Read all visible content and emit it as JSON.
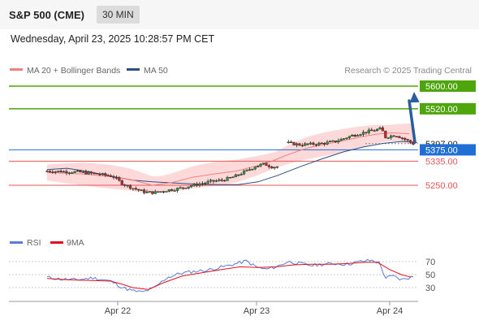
{
  "header": {
    "title": "S&P 500 (CME)",
    "timeframe": "30 MIN"
  },
  "datetime": "Wednesday, April 23, 2025 10:28:57 PM CET",
  "legend": {
    "ma20": "MA 20 + Bollinger Bands",
    "ma50": "MA 50",
    "rsi": "RSI",
    "ma9": "9MA"
  },
  "source": "Research © 2025 Trading Central",
  "colors": {
    "target": "#4ea50c",
    "support": "#e8555a",
    "current": "#1f6fd6",
    "ma50": "#2d4f86",
    "ma20": "#f08080",
    "band": "#fdd9d9",
    "rsi": "#5a7bd8",
    "ma9": "#e0141e",
    "arrow": "#2a5d9c"
  },
  "chart_data": {
    "type": "line",
    "instrument": "S&P 500 (CME)",
    "timeframe": "30 MIN",
    "x_ticks": [
      "Apr 22",
      "Apr 23",
      "Apr 24"
    ],
    "price_levels": [
      {
        "label": "5600.00",
        "value": 5600,
        "kind": "target"
      },
      {
        "label": "5520.00",
        "value": 5520,
        "kind": "target"
      },
      {
        "label": "5397.00",
        "value": 5397,
        "kind": "last"
      },
      {
        "label": "5375.00",
        "value": 5375,
        "kind": "pivot"
      },
      {
        "label": "5335.00",
        "value": 5335,
        "kind": "support"
      },
      {
        "label": "5250.00",
        "value": 5250,
        "kind": "support"
      }
    ],
    "price_path": [
      [
        0,
        5300
      ],
      [
        1.5,
        5297
      ],
      [
        2.5,
        5290
      ],
      [
        3.3,
        5282
      ],
      [
        3.8,
        5255
      ],
      [
        4.3,
        5240
      ],
      [
        4.9,
        5226
      ],
      [
        5.4,
        5224
      ],
      [
        6,
        5232
      ],
      [
        6.6,
        5238
      ],
      [
        7.2,
        5248
      ],
      [
        7.7,
        5255
      ],
      [
        8.2,
        5263
      ],
      [
        8.8,
        5268
      ],
      [
        9.4,
        5280
      ],
      [
        10,
        5300
      ],
      [
        10.5,
        5318
      ],
      [
        10.9,
        5325
      ],
      [
        11.3,
        5315
      ],
      [
        11.7,
        5316
      ],
      [
        12,
        5400
      ],
      [
        12.7,
        5393
      ],
      [
        13.3,
        5395
      ],
      [
        13.9,
        5398
      ],
      [
        14.5,
        5405
      ],
      [
        15.3,
        5425
      ],
      [
        16,
        5438
      ],
      [
        16.5,
        5445
      ],
      [
        16.8,
        5450
      ],
      [
        17,
        5420
      ],
      [
        17.5,
        5428
      ],
      [
        17.9,
        5415
      ],
      [
        18.4,
        5397
      ]
    ],
    "ma20_path": [
      [
        0,
        5295
      ],
      [
        1.8,
        5290
      ],
      [
        3.2,
        5280
      ],
      [
        4.2,
        5270
      ],
      [
        5.3,
        5250
      ],
      [
        6.3,
        5260
      ],
      [
        7.3,
        5278
      ],
      [
        8.4,
        5290
      ],
      [
        9.5,
        5300
      ],
      [
        10.5,
        5318
      ],
      [
        11.3,
        5335
      ],
      [
        12.1,
        5358
      ],
      [
        13,
        5380
      ],
      [
        13.8,
        5393
      ],
      [
        14.7,
        5405
      ],
      [
        15.6,
        5418
      ],
      [
        16.5,
        5430
      ],
      [
        17.3,
        5435
      ],
      [
        18.2,
        5432
      ]
    ],
    "ma50_path": [
      [
        0,
        5305
      ],
      [
        1,
        5310
      ],
      [
        2.1,
        5298
      ],
      [
        3.2,
        5282
      ],
      [
        4.3,
        5268
      ],
      [
        5.3,
        5262
      ],
      [
        6.4,
        5258
      ],
      [
        7.5,
        5254
      ],
      [
        8.6,
        5252
      ],
      [
        9.6,
        5252
      ],
      [
        10.6,
        5262
      ],
      [
        11.6,
        5285
      ],
      [
        12.7,
        5315
      ],
      [
        13.8,
        5343
      ],
      [
        14.9,
        5368
      ],
      [
        15.9,
        5385
      ],
      [
        16.9,
        5398
      ],
      [
        17.9,
        5405
      ],
      [
        18.6,
        5400
      ]
    ],
    "price_range": [
      5185,
      5620
    ],
    "rsi": {
      "levels": [
        70,
        50,
        30
      ],
      "range": [
        15,
        80
      ],
      "rsi_path": [
        [
          0,
          46
        ],
        [
          0.7,
          43
        ],
        [
          1.5,
          42
        ],
        [
          2.3,
          45
        ],
        [
          3.2,
          40
        ],
        [
          3.8,
          30
        ],
        [
          4.3,
          25
        ],
        [
          4.8,
          23
        ],
        [
          5.4,
          30
        ],
        [
          6,
          45
        ],
        [
          6.7,
          52
        ],
        [
          7.4,
          55
        ],
        [
          8.1,
          57
        ],
        [
          8.8,
          62
        ],
        [
          9.4,
          66
        ],
        [
          10,
          71
        ],
        [
          10.5,
          62
        ],
        [
          11,
          58
        ],
        [
          11.6,
          63
        ],
        [
          12.1,
          70
        ],
        [
          12.7,
          67
        ],
        [
          13.3,
          64
        ],
        [
          13.9,
          66
        ],
        [
          14.5,
          67
        ],
        [
          15.1,
          66
        ],
        [
          15.7,
          70
        ],
        [
          16.3,
          72
        ],
        [
          16.7,
          68
        ],
        [
          17,
          45
        ],
        [
          17.4,
          48
        ],
        [
          17.8,
          42
        ],
        [
          18.4,
          47
        ]
      ],
      "ma9_path": [
        [
          0,
          44
        ],
        [
          1.1,
          42
        ],
        [
          2.2,
          41
        ],
        [
          3.2,
          40
        ],
        [
          3.8,
          35
        ],
        [
          4.3,
          30
        ],
        [
          5.1,
          27
        ],
        [
          5.8,
          37
        ],
        [
          6.8,
          48
        ],
        [
          7.8,
          53
        ],
        [
          8.8,
          58
        ],
        [
          9.7,
          62
        ],
        [
          10.6,
          61
        ],
        [
          11.5,
          62
        ],
        [
          12.4,
          65
        ],
        [
          13.3,
          66
        ],
        [
          14.2,
          66
        ],
        [
          15.1,
          67
        ],
        [
          16,
          69
        ],
        [
          16.6,
          69
        ],
        [
          17.2,
          58
        ],
        [
          17.8,
          50
        ],
        [
          18.3,
          46
        ]
      ]
    }
  }
}
